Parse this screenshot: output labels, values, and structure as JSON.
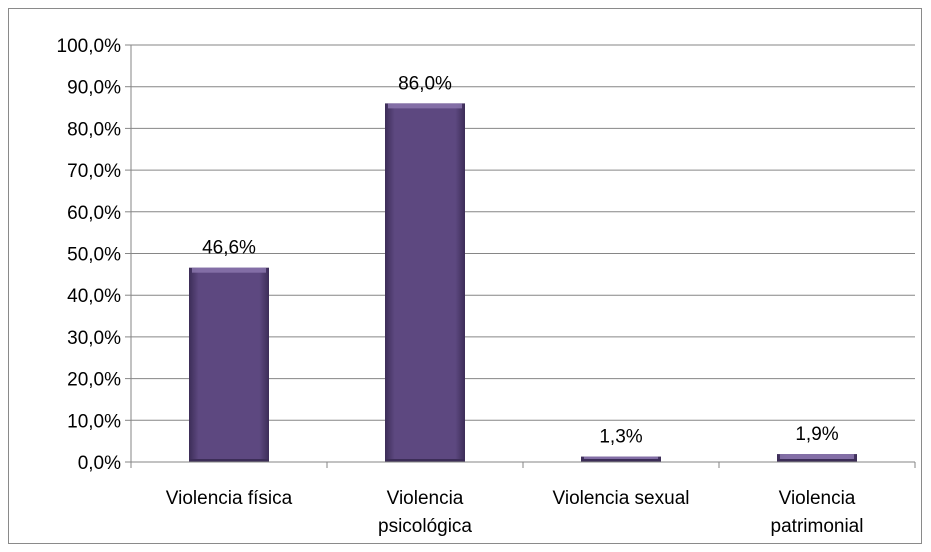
{
  "chart_data": {
    "type": "bar",
    "categories": [
      [
        "Violencia física"
      ],
      [
        "Violencia",
        "psicológica"
      ],
      [
        "Violencia sexual"
      ],
      [
        "Violencia",
        "patrimonial"
      ]
    ],
    "values": [
      46.6,
      86.0,
      1.3,
      1.9
    ],
    "data_labels": [
      "46,6%",
      "86,0%",
      "1,3%",
      "1,9%"
    ],
    "y_ticks": [
      0,
      10,
      20,
      30,
      40,
      50,
      60,
      70,
      80,
      90,
      100
    ],
    "y_tick_labels": [
      "0,0%",
      "10,0%",
      "20,0%",
      "30,0%",
      "40,0%",
      "50,0%",
      "60,0%",
      "70,0%",
      "80,0%",
      "90,0%",
      "100,0%"
    ],
    "ylim": [
      0,
      100
    ],
    "grid": true,
    "legend": "none",
    "colors": {
      "bar": "#5d4880",
      "bar_light": "#8a76ad",
      "bar_dark": "#3c2d57",
      "grid": "#868686",
      "axis": "#868686"
    }
  }
}
